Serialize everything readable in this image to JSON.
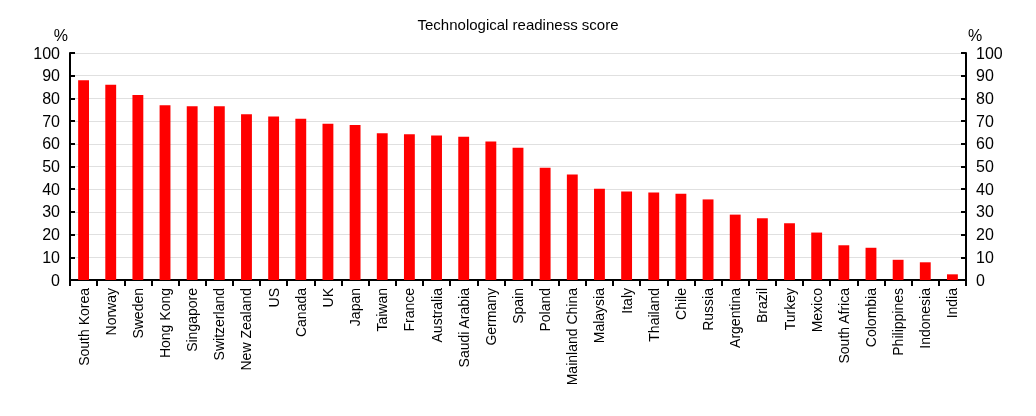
{
  "chart_data": {
    "type": "bar",
    "title": "Technological readiness score",
    "ylabel": "%",
    "y2label": "%",
    "categories": [
      "South Korea",
      "Norway",
      "Sweden",
      "Hong Kong",
      "Singapore",
      "Switzerland",
      "New Zealand",
      "US",
      "Canada",
      "UK",
      "Japan",
      "Taiwan",
      "France",
      "Australia",
      "Saudi Arabia",
      "Germany",
      "Spain",
      "Poland",
      "Mainland China",
      "Malaysia",
      "Italy",
      "Thailand",
      "Chile",
      "Russia",
      "Argentina",
      "Brazil",
      "Turkey",
      "Mexico",
      "South Africa",
      "Colombia",
      "Philippines",
      "Indonesia",
      "India"
    ],
    "values": [
      88,
      86,
      81.5,
      77,
      76.5,
      76.5,
      73,
      72,
      71,
      68.8,
      68.3,
      64.7,
      64.2,
      63.7,
      63.1,
      61,
      58.3,
      49.5,
      46.5,
      40.2,
      39,
      38.6,
      38,
      35.5,
      28.8,
      27.2,
      25,
      20.9,
      15.3,
      14.2,
      8.9,
      7.8,
      2.5
    ],
    "color": "#ff0000",
    "ylim": [
      0,
      100
    ],
    "yticks": [
      0,
      10,
      20,
      30,
      40,
      50,
      60,
      70,
      80,
      90,
      100
    ],
    "y2lim": [
      0,
      100
    ],
    "y2ticks": [
      0,
      10,
      20,
      30,
      40,
      50,
      60,
      70,
      80,
      90,
      100
    ],
    "grid": "y"
  }
}
